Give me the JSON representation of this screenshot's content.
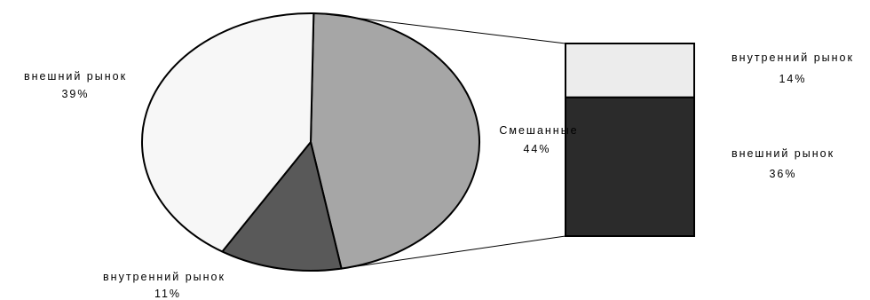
{
  "chart_data": {
    "type": "pie",
    "subtype": "pie-of-bar",
    "main_pie": {
      "slices": [
        {
          "label": "Смешанные",
          "percent_label": "44%",
          "value": 44,
          "color": "#a6a6a6"
        },
        {
          "label": "внутренний рынок",
          "percent_label": "11%",
          "value": 11,
          "color": "#595959"
        },
        {
          "label": "внешний рынок",
          "percent_label": "39%",
          "value": 39,
          "color": "#f7f7f7"
        }
      ]
    },
    "breakdown_bar": {
      "parent_slice": "Смешанные",
      "segments": [
        {
          "label": "внутренний рынок",
          "percent_label": "14%",
          "value": 14,
          "color": "#ececec"
        },
        {
          "label": "внешний рынок",
          "percent_label": "36%",
          "value": 36,
          "color": "#2b2b2b"
        }
      ]
    },
    "colors": {
      "outline": "#000000",
      "background": "#ffffff"
    }
  }
}
